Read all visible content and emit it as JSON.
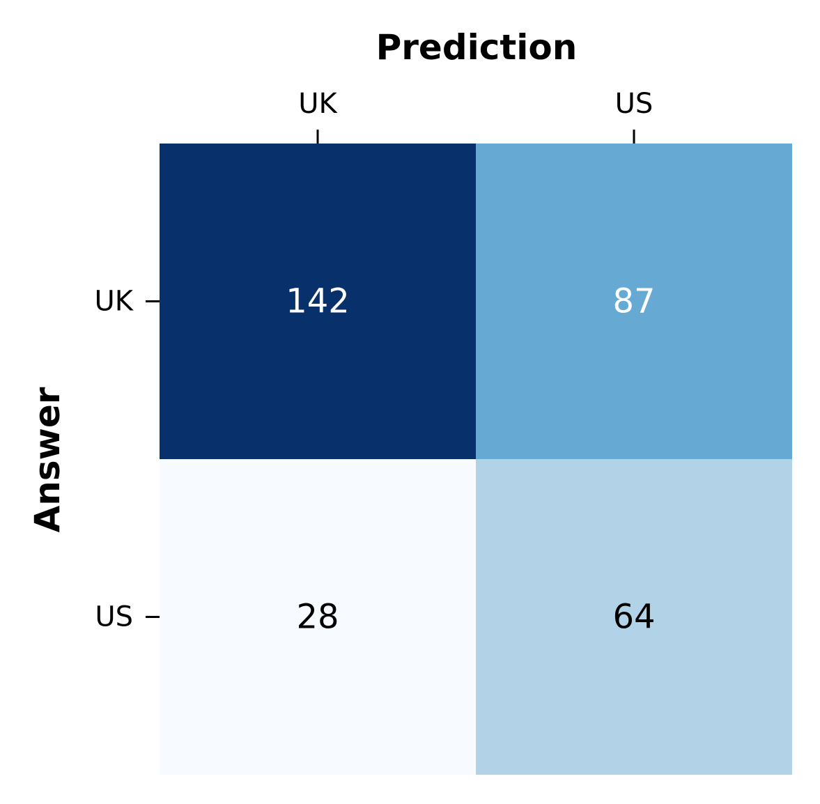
{
  "chart_data": {
    "type": "heatmap",
    "title": "",
    "xlabel": "Prediction",
    "ylabel": "Answer",
    "x_categories": [
      "UK",
      "US"
    ],
    "y_categories": [
      "UK",
      "US"
    ],
    "values": [
      [
        142,
        87
      ],
      [
        28,
        64
      ]
    ],
    "x_axis_position": "top",
    "colormap": "Blues",
    "colorbar": false,
    "grid": false,
    "cell_colors": [
      [
        "#08306b",
        "#66aad4"
      ],
      [
        "#f7fbff",
        "#b2d2e8"
      ]
    ],
    "cell_text_colors": [
      [
        "#ffffff",
        "#ffffff"
      ],
      [
        "#000000",
        "#000000"
      ]
    ]
  }
}
